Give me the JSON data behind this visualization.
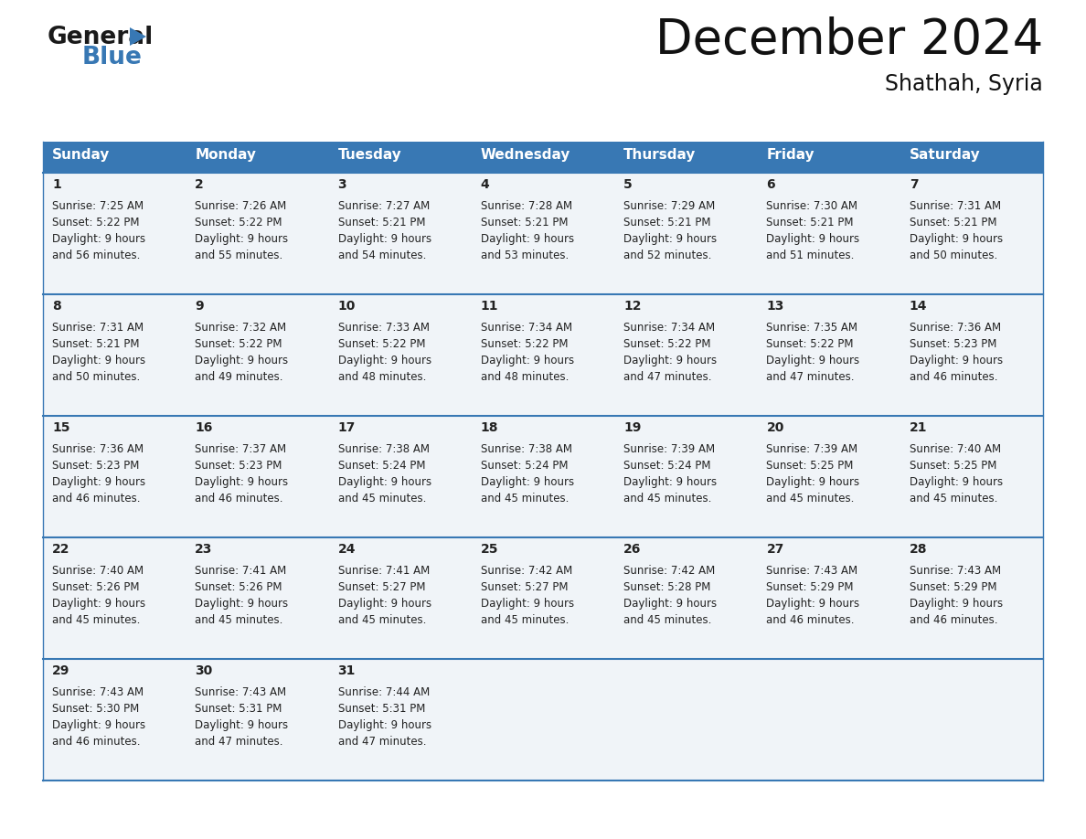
{
  "title": "December 2024",
  "subtitle": "Shathah, Syria",
  "days_of_week": [
    "Sunday",
    "Monday",
    "Tuesday",
    "Wednesday",
    "Thursday",
    "Friday",
    "Saturday"
  ],
  "header_bg": "#3878b4",
  "header_text": "#ffffff",
  "cell_bg": "#f0f4f8",
  "text_color": "#222222",
  "border_color": "#3878b4",
  "line_color": "#3878b4",
  "calendar": [
    [
      {
        "day": 1,
        "sunrise": "7:25 AM",
        "sunset": "5:22 PM",
        "daylight_hours": 9,
        "daylight_minutes": 56
      },
      {
        "day": 2,
        "sunrise": "7:26 AM",
        "sunset": "5:22 PM",
        "daylight_hours": 9,
        "daylight_minutes": 55
      },
      {
        "day": 3,
        "sunrise": "7:27 AM",
        "sunset": "5:21 PM",
        "daylight_hours": 9,
        "daylight_minutes": 54
      },
      {
        "day": 4,
        "sunrise": "7:28 AM",
        "sunset": "5:21 PM",
        "daylight_hours": 9,
        "daylight_minutes": 53
      },
      {
        "day": 5,
        "sunrise": "7:29 AM",
        "sunset": "5:21 PM",
        "daylight_hours": 9,
        "daylight_minutes": 52
      },
      {
        "day": 6,
        "sunrise": "7:30 AM",
        "sunset": "5:21 PM",
        "daylight_hours": 9,
        "daylight_minutes": 51
      },
      {
        "day": 7,
        "sunrise": "7:31 AM",
        "sunset": "5:21 PM",
        "daylight_hours": 9,
        "daylight_minutes": 50
      }
    ],
    [
      {
        "day": 8,
        "sunrise": "7:31 AM",
        "sunset": "5:21 PM",
        "daylight_hours": 9,
        "daylight_minutes": 50
      },
      {
        "day": 9,
        "sunrise": "7:32 AM",
        "sunset": "5:22 PM",
        "daylight_hours": 9,
        "daylight_minutes": 49
      },
      {
        "day": 10,
        "sunrise": "7:33 AM",
        "sunset": "5:22 PM",
        "daylight_hours": 9,
        "daylight_minutes": 48
      },
      {
        "day": 11,
        "sunrise": "7:34 AM",
        "sunset": "5:22 PM",
        "daylight_hours": 9,
        "daylight_minutes": 48
      },
      {
        "day": 12,
        "sunrise": "7:34 AM",
        "sunset": "5:22 PM",
        "daylight_hours": 9,
        "daylight_minutes": 47
      },
      {
        "day": 13,
        "sunrise": "7:35 AM",
        "sunset": "5:22 PM",
        "daylight_hours": 9,
        "daylight_minutes": 47
      },
      {
        "day": 14,
        "sunrise": "7:36 AM",
        "sunset": "5:23 PM",
        "daylight_hours": 9,
        "daylight_minutes": 46
      }
    ],
    [
      {
        "day": 15,
        "sunrise": "7:36 AM",
        "sunset": "5:23 PM",
        "daylight_hours": 9,
        "daylight_minutes": 46
      },
      {
        "day": 16,
        "sunrise": "7:37 AM",
        "sunset": "5:23 PM",
        "daylight_hours": 9,
        "daylight_minutes": 46
      },
      {
        "day": 17,
        "sunrise": "7:38 AM",
        "sunset": "5:24 PM",
        "daylight_hours": 9,
        "daylight_minutes": 45
      },
      {
        "day": 18,
        "sunrise": "7:38 AM",
        "sunset": "5:24 PM",
        "daylight_hours": 9,
        "daylight_minutes": 45
      },
      {
        "day": 19,
        "sunrise": "7:39 AM",
        "sunset": "5:24 PM",
        "daylight_hours": 9,
        "daylight_minutes": 45
      },
      {
        "day": 20,
        "sunrise": "7:39 AM",
        "sunset": "5:25 PM",
        "daylight_hours": 9,
        "daylight_minutes": 45
      },
      {
        "day": 21,
        "sunrise": "7:40 AM",
        "sunset": "5:25 PM",
        "daylight_hours": 9,
        "daylight_minutes": 45
      }
    ],
    [
      {
        "day": 22,
        "sunrise": "7:40 AM",
        "sunset": "5:26 PM",
        "daylight_hours": 9,
        "daylight_minutes": 45
      },
      {
        "day": 23,
        "sunrise": "7:41 AM",
        "sunset": "5:26 PM",
        "daylight_hours": 9,
        "daylight_minutes": 45
      },
      {
        "day": 24,
        "sunrise": "7:41 AM",
        "sunset": "5:27 PM",
        "daylight_hours": 9,
        "daylight_minutes": 45
      },
      {
        "day": 25,
        "sunrise": "7:42 AM",
        "sunset": "5:27 PM",
        "daylight_hours": 9,
        "daylight_minutes": 45
      },
      {
        "day": 26,
        "sunrise": "7:42 AM",
        "sunset": "5:28 PM",
        "daylight_hours": 9,
        "daylight_minutes": 45
      },
      {
        "day": 27,
        "sunrise": "7:43 AM",
        "sunset": "5:29 PM",
        "daylight_hours": 9,
        "daylight_minutes": 46
      },
      {
        "day": 28,
        "sunrise": "7:43 AM",
        "sunset": "5:29 PM",
        "daylight_hours": 9,
        "daylight_minutes": 46
      }
    ],
    [
      {
        "day": 29,
        "sunrise": "7:43 AM",
        "sunset": "5:30 PM",
        "daylight_hours": 9,
        "daylight_minutes": 46
      },
      {
        "day": 30,
        "sunrise": "7:43 AM",
        "sunset": "5:31 PM",
        "daylight_hours": 9,
        "daylight_minutes": 47
      },
      {
        "day": 31,
        "sunrise": "7:44 AM",
        "sunset": "5:31 PM",
        "daylight_hours": 9,
        "daylight_minutes": 47
      },
      null,
      null,
      null,
      null
    ]
  ],
  "logo_general_color": "#1a1a1a",
  "logo_blue_color": "#3878b4",
  "logo_triangle_color": "#3878b4",
  "figsize": [
    11.88,
    9.18
  ],
  "dpi": 100
}
